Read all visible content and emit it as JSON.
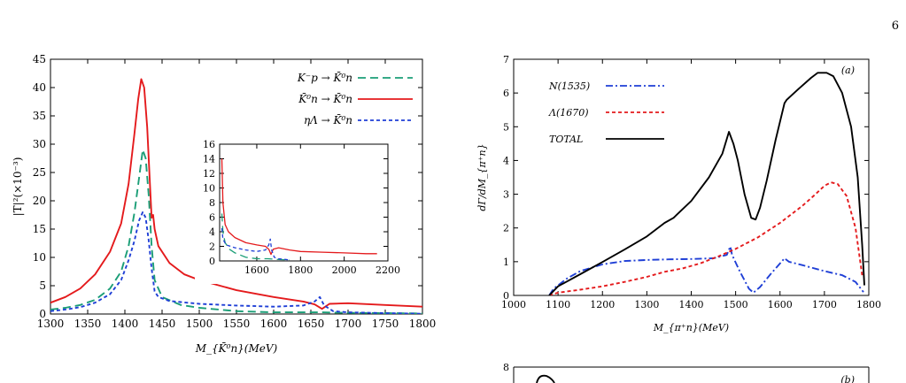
{
  "page": {
    "number": "6"
  },
  "chart_data": [
    {
      "id": "left",
      "type": "line",
      "xlabel": "M_{K̄⁰n}(MeV)",
      "ylabel": "|T|²(×10⁻³)",
      "xlim": [
        1300,
        1800
      ],
      "ylim": [
        0,
        45
      ],
      "xticks": [
        1300,
        1350,
        1400,
        1450,
        1500,
        1550,
        1600,
        1650,
        1700,
        1750,
        1800
      ],
      "yticks": [
        0,
        5,
        10,
        15,
        20,
        25,
        30,
        35,
        40,
        45
      ],
      "legend_position": "top-right",
      "series": [
        {
          "name": "K⁻p → K̄⁰n",
          "color": "#1b9e77",
          "dash": "long",
          "points": [
            [
              1300,
              0.8
            ],
            [
              1320,
              1.1
            ],
            [
              1340,
              1.6
            ],
            [
              1360,
              2.5
            ],
            [
              1380,
              4.5
            ],
            [
              1395,
              7.5
            ],
            [
              1405,
              12
            ],
            [
              1413,
              18
            ],
            [
              1419,
              24
            ],
            [
              1424,
              29
            ],
            [
              1428,
              27.5
            ],
            [
              1432,
              21
            ],
            [
              1436,
              12
            ],
            [
              1440,
              6
            ],
            [
              1450,
              3
            ],
            [
              1475,
              1.6
            ],
            [
              1500,
              1.1
            ],
            [
              1550,
              0.5
            ],
            [
              1600,
              0.3
            ],
            [
              1650,
              0.3
            ],
            [
              1665,
              0.3
            ],
            [
              1700,
              0.2
            ],
            [
              1750,
              0.15
            ],
            [
              1800,
              0.1
            ]
          ]
        },
        {
          "name": "K̄⁰n → K̄⁰n",
          "color": "#e41a1c",
          "dash": "solid",
          "points": [
            [
              1300,
              2
            ],
            [
              1320,
              3
            ],
            [
              1340,
              4.5
            ],
            [
              1360,
              7
            ],
            [
              1380,
              11
            ],
            [
              1395,
              16
            ],
            [
              1405,
              23
            ],
            [
              1413,
              32
            ],
            [
              1418,
              38
            ],
            [
              1422,
              41.5
            ],
            [
              1426,
              40
            ],
            [
              1430,
              33
            ],
            [
              1434,
              22
            ],
            [
              1436,
              17
            ],
            [
              1438,
              17.5
            ],
            [
              1440,
              15
            ],
            [
              1445,
              12
            ],
            [
              1460,
              9
            ],
            [
              1480,
              7
            ],
            [
              1500,
              6
            ],
            [
              1550,
              4.2
            ],
            [
              1600,
              3
            ],
            [
              1640,
              2.2
            ],
            [
              1655,
              1.7
            ],
            [
              1665,
              0.9
            ],
            [
              1675,
              1.8
            ],
            [
              1700,
              1.9
            ],
            [
              1750,
              1.6
            ],
            [
              1800,
              1.3
            ]
          ]
        },
        {
          "name": "ηΛ → K̄⁰n",
          "color": "#1f3fd6",
          "dash": "short",
          "points": [
            [
              1300,
              0.5
            ],
            [
              1320,
              0.8
            ],
            [
              1340,
              1.2
            ],
            [
              1360,
              2
            ],
            [
              1380,
              3.5
            ],
            [
              1395,
              6
            ],
            [
              1405,
              9.5
            ],
            [
              1413,
              13
            ],
            [
              1419,
              16.5
            ],
            [
              1424,
              18
            ],
            [
              1428,
              17
            ],
            [
              1432,
              13
            ],
            [
              1436,
              8
            ],
            [
              1440,
              4
            ],
            [
              1445,
              3
            ],
            [
              1460,
              2.3
            ],
            [
              1500,
              1.8
            ],
            [
              1550,
              1.5
            ],
            [
              1600,
              1.3
            ],
            [
              1640,
              1.5
            ],
            [
              1655,
              2.2
            ],
            [
              1662,
              3.0
            ],
            [
              1668,
              1.5
            ],
            [
              1680,
              0.5
            ],
            [
              1700,
              0.3
            ],
            [
              1750,
              0.15
            ],
            [
              1800,
              0.05
            ]
          ]
        }
      ],
      "inset": {
        "xlim": [
          1430,
          2200
        ],
        "ylim": [
          0,
          16
        ],
        "xticks": [
          1400,
          1600,
          1800,
          2000,
          2200
        ],
        "yticks": [
          0,
          2,
          4,
          6,
          8,
          10,
          12,
          14,
          16
        ],
        "series": [
          {
            "name": "K̄⁰n → K̄⁰n",
            "color": "#e41a1c",
            "dash": "solid",
            "points": [
              [
                1440,
                14
              ],
              [
                1445,
                8
              ],
              [
                1455,
                5
              ],
              [
                1470,
                4
              ],
              [
                1500,
                3.2
              ],
              [
                1550,
                2.5
              ],
              [
                1600,
                2.2
              ],
              [
                1640,
                2.0
              ],
              [
                1655,
                1.6
              ],
              [
                1665,
                0.9
              ],
              [
                1675,
                1.6
              ],
              [
                1700,
                1.8
              ],
              [
                1750,
                1.5
              ],
              [
                1800,
                1.3
              ],
              [
                1900,
                1.2
              ],
              [
                2000,
                1.1
              ],
              [
                2100,
                1.0
              ],
              [
                2150,
                1.0
              ]
            ]
          },
          {
            "name": "K⁻p → K̄⁰n",
            "color": "#1b9e77",
            "dash": "long",
            "points": [
              [
                1440,
                6.5
              ],
              [
                1445,
                4
              ],
              [
                1455,
                2.5
              ],
              [
                1475,
                1.6
              ],
              [
                1500,
                1.1
              ],
              [
                1550,
                0.5
              ],
              [
                1600,
                0.3
              ],
              [
                1650,
                0.3
              ],
              [
                1700,
                0.2
              ],
              [
                1750,
                0.15
              ]
            ]
          },
          {
            "name": "ηΛ → K̄⁰n",
            "color": "#1f3fd6",
            "dash": "short",
            "points": [
              [
                1440,
                4.5
              ],
              [
                1445,
                3
              ],
              [
                1460,
                2.2
              ],
              [
                1500,
                1.8
              ],
              [
                1550,
                1.5
              ],
              [
                1600,
                1.3
              ],
              [
                1640,
                1.5
              ],
              [
                1655,
                2.2
              ],
              [
                1662,
                3
              ],
              [
                1668,
                1.5
              ],
              [
                1680,
                0.5
              ],
              [
                1700,
                0.3
              ],
              [
                1750,
                0.15
              ]
            ]
          }
        ]
      }
    },
    {
      "id": "right-a",
      "type": "line",
      "panel_label": "(a)",
      "xlabel": "M_{π⁺n}(MeV)",
      "ylabel": "dΓ/dM_{π⁺n}",
      "xlim": [
        1000,
        1800
      ],
      "ylim": [
        0,
        7
      ],
      "xticks": [
        1000,
        1100,
        1200,
        1300,
        1400,
        1500,
        1600,
        1700,
        1800
      ],
      "yticks": [
        0,
        1,
        2,
        3,
        4,
        5,
        6,
        7
      ],
      "legend_position": "top-left",
      "series": [
        {
          "name": "N(1535)",
          "color": "#1f3fd6",
          "dash": "dashdot",
          "points": [
            [
              1080,
              0
            ],
            [
              1090,
              0.2
            ],
            [
              1120,
              0.5
            ],
            [
              1150,
              0.72
            ],
            [
              1200,
              0.92
            ],
            [
              1250,
              1.02
            ],
            [
              1300,
              1.05
            ],
            [
              1350,
              1.07
            ],
            [
              1400,
              1.08
            ],
            [
              1450,
              1.1
            ],
            [
              1480,
              1.2
            ],
            [
              1488,
              1.45
            ],
            [
              1492,
              1.2
            ],
            [
              1510,
              0.7
            ],
            [
              1530,
              0.2
            ],
            [
              1540,
              0.08
            ],
            [
              1555,
              0.25
            ],
            [
              1580,
              0.65
            ],
            [
              1600,
              0.95
            ],
            [
              1610,
              1.1
            ],
            [
              1620,
              1.0
            ],
            [
              1650,
              0.9
            ],
            [
              1700,
              0.72
            ],
            [
              1740,
              0.6
            ],
            [
              1770,
              0.4
            ],
            [
              1788,
              0.1
            ]
          ]
        },
        {
          "name": "Λ(1670)",
          "color": "#e41a1c",
          "dash": "short",
          "points": [
            [
              1080,
              0
            ],
            [
              1100,
              0.08
            ],
            [
              1150,
              0.17
            ],
            [
              1200,
              0.27
            ],
            [
              1250,
              0.4
            ],
            [
              1300,
              0.55
            ],
            [
              1340,
              0.7
            ],
            [
              1380,
              0.8
            ],
            [
              1420,
              0.95
            ],
            [
              1460,
              1.15
            ],
            [
              1500,
              1.38
            ],
            [
              1550,
              1.72
            ],
            [
              1600,
              2.15
            ],
            [
              1650,
              2.65
            ],
            [
              1680,
              3.0
            ],
            [
              1700,
              3.25
            ],
            [
              1715,
              3.35
            ],
            [
              1730,
              3.3
            ],
            [
              1750,
              2.95
            ],
            [
              1770,
              2.0
            ],
            [
              1785,
              0.6
            ]
          ]
        },
        {
          "name": "TOTAL",
          "color": "#000000",
          "dash": "solid",
          "points": [
            [
              1080,
              0
            ],
            [
              1100,
              0.27
            ],
            [
              1150,
              0.63
            ],
            [
              1200,
              0.99
            ],
            [
              1250,
              1.36
            ],
            [
              1300,
              1.75
            ],
            [
              1340,
              2.15
            ],
            [
              1360,
              2.3
            ],
            [
              1400,
              2.8
            ],
            [
              1440,
              3.5
            ],
            [
              1470,
              4.2
            ],
            [
              1485,
              4.85
            ],
            [
              1495,
              4.5
            ],
            [
              1505,
              4.0
            ],
            [
              1520,
              3.0
            ],
            [
              1535,
              2.3
            ],
            [
              1545,
              2.25
            ],
            [
              1555,
              2.6
            ],
            [
              1570,
              3.4
            ],
            [
              1590,
              4.6
            ],
            [
              1610,
              5.7
            ],
            [
              1615,
              5.8
            ],
            [
              1640,
              6.1
            ],
            [
              1670,
              6.45
            ],
            [
              1685,
              6.6
            ],
            [
              1705,
              6.6
            ],
            [
              1720,
              6.5
            ],
            [
              1740,
              6.0
            ],
            [
              1760,
              5.0
            ],
            [
              1775,
              3.5
            ],
            [
              1785,
              1.5
            ],
            [
              1790,
              0.3
            ]
          ]
        }
      ]
    },
    {
      "id": "right-b",
      "type": "line",
      "panel_label": "(b)",
      "yticks": [
        8
      ]
    }
  ]
}
